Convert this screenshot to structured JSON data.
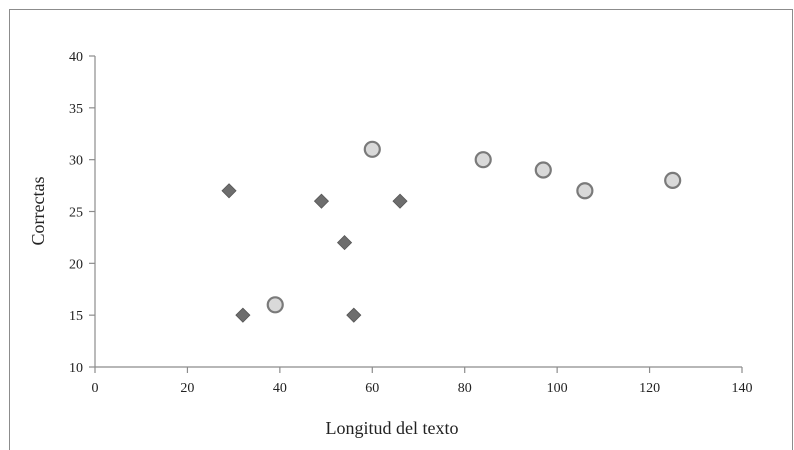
{
  "chart_data": {
    "type": "scatter",
    "title": "",
    "xlabel": "Longitud del texto",
    "ylabel": "Correctas",
    "xlim": [
      0,
      140
    ],
    "ylim": [
      10,
      40
    ],
    "xticks": [
      "0",
      "20",
      "40",
      "60",
      "80",
      "100",
      "120",
      "140"
    ],
    "yticks": [
      "10",
      "15",
      "20",
      "25",
      "30",
      "35",
      "40"
    ],
    "grid": false,
    "legend": "none",
    "series": [
      {
        "marker": "diamond",
        "color": "#6d6d6d",
        "x": [
          29,
          32,
          49,
          54,
          56,
          66
        ],
        "y": [
          27,
          15,
          26,
          22,
          15,
          26
        ]
      },
      {
        "marker": "circle",
        "color": "#d9d9d9",
        "stroke": "#7a7a7a",
        "x": [
          39,
          60,
          84,
          97,
          106,
          125
        ],
        "y": [
          16,
          31,
          30,
          29,
          27,
          28
        ]
      }
    ]
  }
}
